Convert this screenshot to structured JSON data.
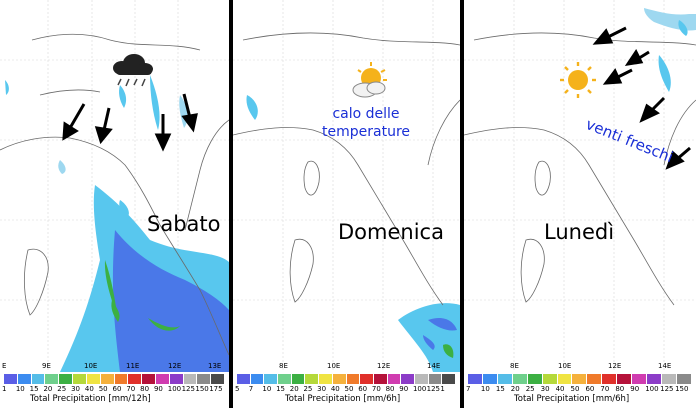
{
  "panels": [
    {
      "day": "Sabato",
      "note": "",
      "axis_ticks": [
        "E",
        "9E",
        "10E",
        "11E",
        "12E",
        "13E"
      ],
      "colorbar_ticks": [
        "1",
        "10",
        "15",
        "20",
        "25",
        "30",
        "40",
        "50",
        "60",
        "70",
        "80",
        "90",
        "100",
        "125",
        "150",
        "175"
      ],
      "colorbar_title": "Total Precipitation [mm/12h]",
      "weather_icon": "rain-cloud-icon"
    },
    {
      "day": "Domenica",
      "note": "calo delle temperature",
      "note_line1": "calo delle",
      "note_line2": "temperature",
      "axis_ticks": [
        "8E",
        "10E",
        "12E",
        "14E"
      ],
      "colorbar_ticks": [
        "5",
        "7",
        "10",
        "15",
        "20",
        "25",
        "30",
        "40",
        "50",
        "60",
        "70",
        "80",
        "90",
        "100",
        "125",
        "1"
      ],
      "colorbar_title": "Total Precipitation [mm/6h]",
      "weather_icon": "sun-behind-cloud-icon"
    },
    {
      "day": "Lunedì",
      "note": "venti freschi",
      "axis_ticks": [
        "8E",
        "10E",
        "12E",
        "14E"
      ],
      "colorbar_ticks": [
        "7",
        "10",
        "15",
        "20",
        "25",
        "30",
        "40",
        "50",
        "60",
        "70",
        "80",
        "90",
        "100",
        "125",
        "150"
      ],
      "colorbar_title": "Total Precipitation [mm/6h]",
      "weather_icon": "sun-icon"
    }
  ],
  "colorbar_colors": [
    "#5a5ee6",
    "#3c8cf0",
    "#55bde8",
    "#6fd08c",
    "#3cb043",
    "#b5d93a",
    "#f0e442",
    "#f5b13c",
    "#f07a2a",
    "#e0302a",
    "#b5123a",
    "#d03cb0",
    "#8c3cc8",
    "#b9b9b9",
    "#8a8a8a",
    "#4a4a4a"
  ],
  "arrow_color": "#000000",
  "text_accent": "#1a2fd6"
}
